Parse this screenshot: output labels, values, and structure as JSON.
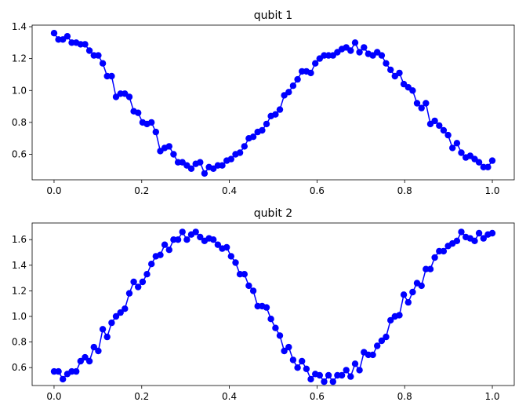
{
  "chart_data": [
    {
      "type": "line",
      "title": "qubit 1",
      "xlim": [
        -0.05,
        1.05
      ],
      "ylim": [
        0.44,
        1.41
      ],
      "xticks": [
        "0.0",
        "0.2",
        "0.4",
        "0.6",
        "0.8",
        "1.0"
      ],
      "yticks": [
        "0.6",
        "0.8",
        "1.0",
        "1.2",
        "1.4"
      ],
      "color": "#0000ff",
      "series": [
        {
          "x": [
            0.0,
            0.0101,
            0.0202,
            0.0303,
            0.0404,
            0.0505,
            0.0606,
            0.0707,
            0.0808,
            0.0909,
            0.101,
            0.1111,
            0.1212,
            0.1313,
            0.1414,
            0.1515,
            0.1616,
            0.1717,
            0.1818,
            0.1919,
            0.202,
            0.2121,
            0.2222,
            0.2323,
            0.2424,
            0.2525,
            0.2626,
            0.2727,
            0.2828,
            0.2929,
            0.303,
            0.3131,
            0.3232,
            0.3333,
            0.3434,
            0.3535,
            0.3636,
            0.3737,
            0.3838,
            0.3939,
            0.404,
            0.4141,
            0.4242,
            0.4343,
            0.4444,
            0.4545,
            0.4646,
            0.4747,
            0.4848,
            0.4949,
            0.5051,
            0.5152,
            0.5253,
            0.5354,
            0.5455,
            0.5556,
            0.5657,
            0.5758,
            0.5859,
            0.596,
            0.6061,
            0.6162,
            0.6263,
            0.6364,
            0.6465,
            0.6566,
            0.6667,
            0.6768,
            0.6869,
            0.697,
            0.7071,
            0.7172,
            0.7273,
            0.7374,
            0.7475,
            0.7576,
            0.7677,
            0.7778,
            0.7879,
            0.798,
            0.8081,
            0.8182,
            0.8283,
            0.8384,
            0.8485,
            0.8586,
            0.8687,
            0.8788,
            0.8889,
            0.899,
            0.9091,
            0.9192,
            0.9293,
            0.9394,
            0.9495,
            0.9596,
            0.9697,
            0.9798,
            0.9899,
            1.0
          ],
          "y": [
            1.36,
            1.32,
            1.32,
            1.34,
            1.3,
            1.3,
            1.29,
            1.29,
            1.25,
            1.22,
            1.22,
            1.17,
            1.09,
            1.09,
            0.96,
            0.98,
            0.98,
            0.96,
            0.87,
            0.86,
            0.8,
            0.79,
            0.8,
            0.74,
            0.62,
            0.64,
            0.65,
            0.6,
            0.55,
            0.55,
            0.53,
            0.51,
            0.54,
            0.55,
            0.48,
            0.52,
            0.51,
            0.53,
            0.53,
            0.56,
            0.57,
            0.6,
            0.61,
            0.65,
            0.7,
            0.71,
            0.74,
            0.75,
            0.79,
            0.84,
            0.85,
            0.88,
            0.97,
            0.99,
            1.03,
            1.07,
            1.12,
            1.12,
            1.11,
            1.17,
            1.2,
            1.22,
            1.22,
            1.22,
            1.24,
            1.26,
            1.27,
            1.25,
            1.3,
            1.24,
            1.27,
            1.23,
            1.22,
            1.24,
            1.22,
            1.17,
            1.13,
            1.09,
            1.11,
            1.04,
            1.02,
            1.0,
            0.92,
            0.89,
            0.92,
            0.79,
            0.81,
            0.78,
            0.75,
            0.72,
            0.64,
            0.67,
            0.61,
            0.58,
            0.59,
            0.57,
            0.55,
            0.52,
            0.52,
            0.56
          ]
        }
      ]
    },
    {
      "type": "line",
      "title": "qubit 2",
      "xlim": [
        -0.05,
        1.05
      ],
      "ylim": [
        0.46,
        1.73
      ],
      "xticks": [
        "0.0",
        "0.2",
        "0.4",
        "0.6",
        "0.8",
        "1.0"
      ],
      "yticks": [
        "0.6",
        "0.8",
        "1.0",
        "1.2",
        "1.4",
        "1.6"
      ],
      "color": "#0000ff",
      "series": [
        {
          "x": [
            0.0,
            0.0101,
            0.0202,
            0.0303,
            0.0404,
            0.0505,
            0.0606,
            0.0707,
            0.0808,
            0.0909,
            0.101,
            0.1111,
            0.1212,
            0.1313,
            0.1414,
            0.1515,
            0.1616,
            0.1717,
            0.1818,
            0.1919,
            0.202,
            0.2121,
            0.2222,
            0.2323,
            0.2424,
            0.2525,
            0.2626,
            0.2727,
            0.2828,
            0.2929,
            0.303,
            0.3131,
            0.3232,
            0.3333,
            0.3434,
            0.3535,
            0.3636,
            0.3737,
            0.3838,
            0.3939,
            0.404,
            0.4141,
            0.4242,
            0.4343,
            0.4444,
            0.4545,
            0.4646,
            0.4747,
            0.4848,
            0.4949,
            0.5051,
            0.5152,
            0.5253,
            0.5354,
            0.5455,
            0.5556,
            0.5657,
            0.5758,
            0.5859,
            0.596,
            0.6061,
            0.6162,
            0.6263,
            0.6364,
            0.6465,
            0.6566,
            0.6667,
            0.6768,
            0.6869,
            0.697,
            0.7071,
            0.7172,
            0.7273,
            0.7374,
            0.7475,
            0.7576,
            0.7677,
            0.7778,
            0.7879,
            0.798,
            0.8081,
            0.8182,
            0.8283,
            0.8384,
            0.8485,
            0.8586,
            0.8687,
            0.8788,
            0.8889,
            0.899,
            0.9091,
            0.9192,
            0.9293,
            0.9394,
            0.9495,
            0.9596,
            0.9697,
            0.9798,
            0.9899,
            1.0
          ],
          "y": [
            0.57,
            0.57,
            0.51,
            0.55,
            0.57,
            0.57,
            0.65,
            0.68,
            0.65,
            0.76,
            0.73,
            0.9,
            0.84,
            0.95,
            1.0,
            1.03,
            1.06,
            1.18,
            1.27,
            1.23,
            1.27,
            1.33,
            1.41,
            1.47,
            1.48,
            1.56,
            1.52,
            1.6,
            1.6,
            1.66,
            1.6,
            1.64,
            1.66,
            1.62,
            1.59,
            1.61,
            1.6,
            1.56,
            1.53,
            1.54,
            1.47,
            1.42,
            1.33,
            1.33,
            1.24,
            1.2,
            1.08,
            1.08,
            1.07,
            0.98,
            0.91,
            0.85,
            0.73,
            0.76,
            0.66,
            0.6,
            0.65,
            0.59,
            0.51,
            0.55,
            0.54,
            0.49,
            0.54,
            0.49,
            0.54,
            0.54,
            0.58,
            0.53,
            0.63,
            0.58,
            0.72,
            0.7,
            0.7,
            0.77,
            0.81,
            0.84,
            0.97,
            1.0,
            1.01,
            1.17,
            1.11,
            1.19,
            1.26,
            1.24,
            1.37,
            1.37,
            1.46,
            1.51,
            1.51,
            1.55,
            1.57,
            1.59,
            1.66,
            1.62,
            1.61,
            1.59,
            1.65,
            1.61,
            1.64,
            1.65
          ]
        }
      ]
    }
  ]
}
